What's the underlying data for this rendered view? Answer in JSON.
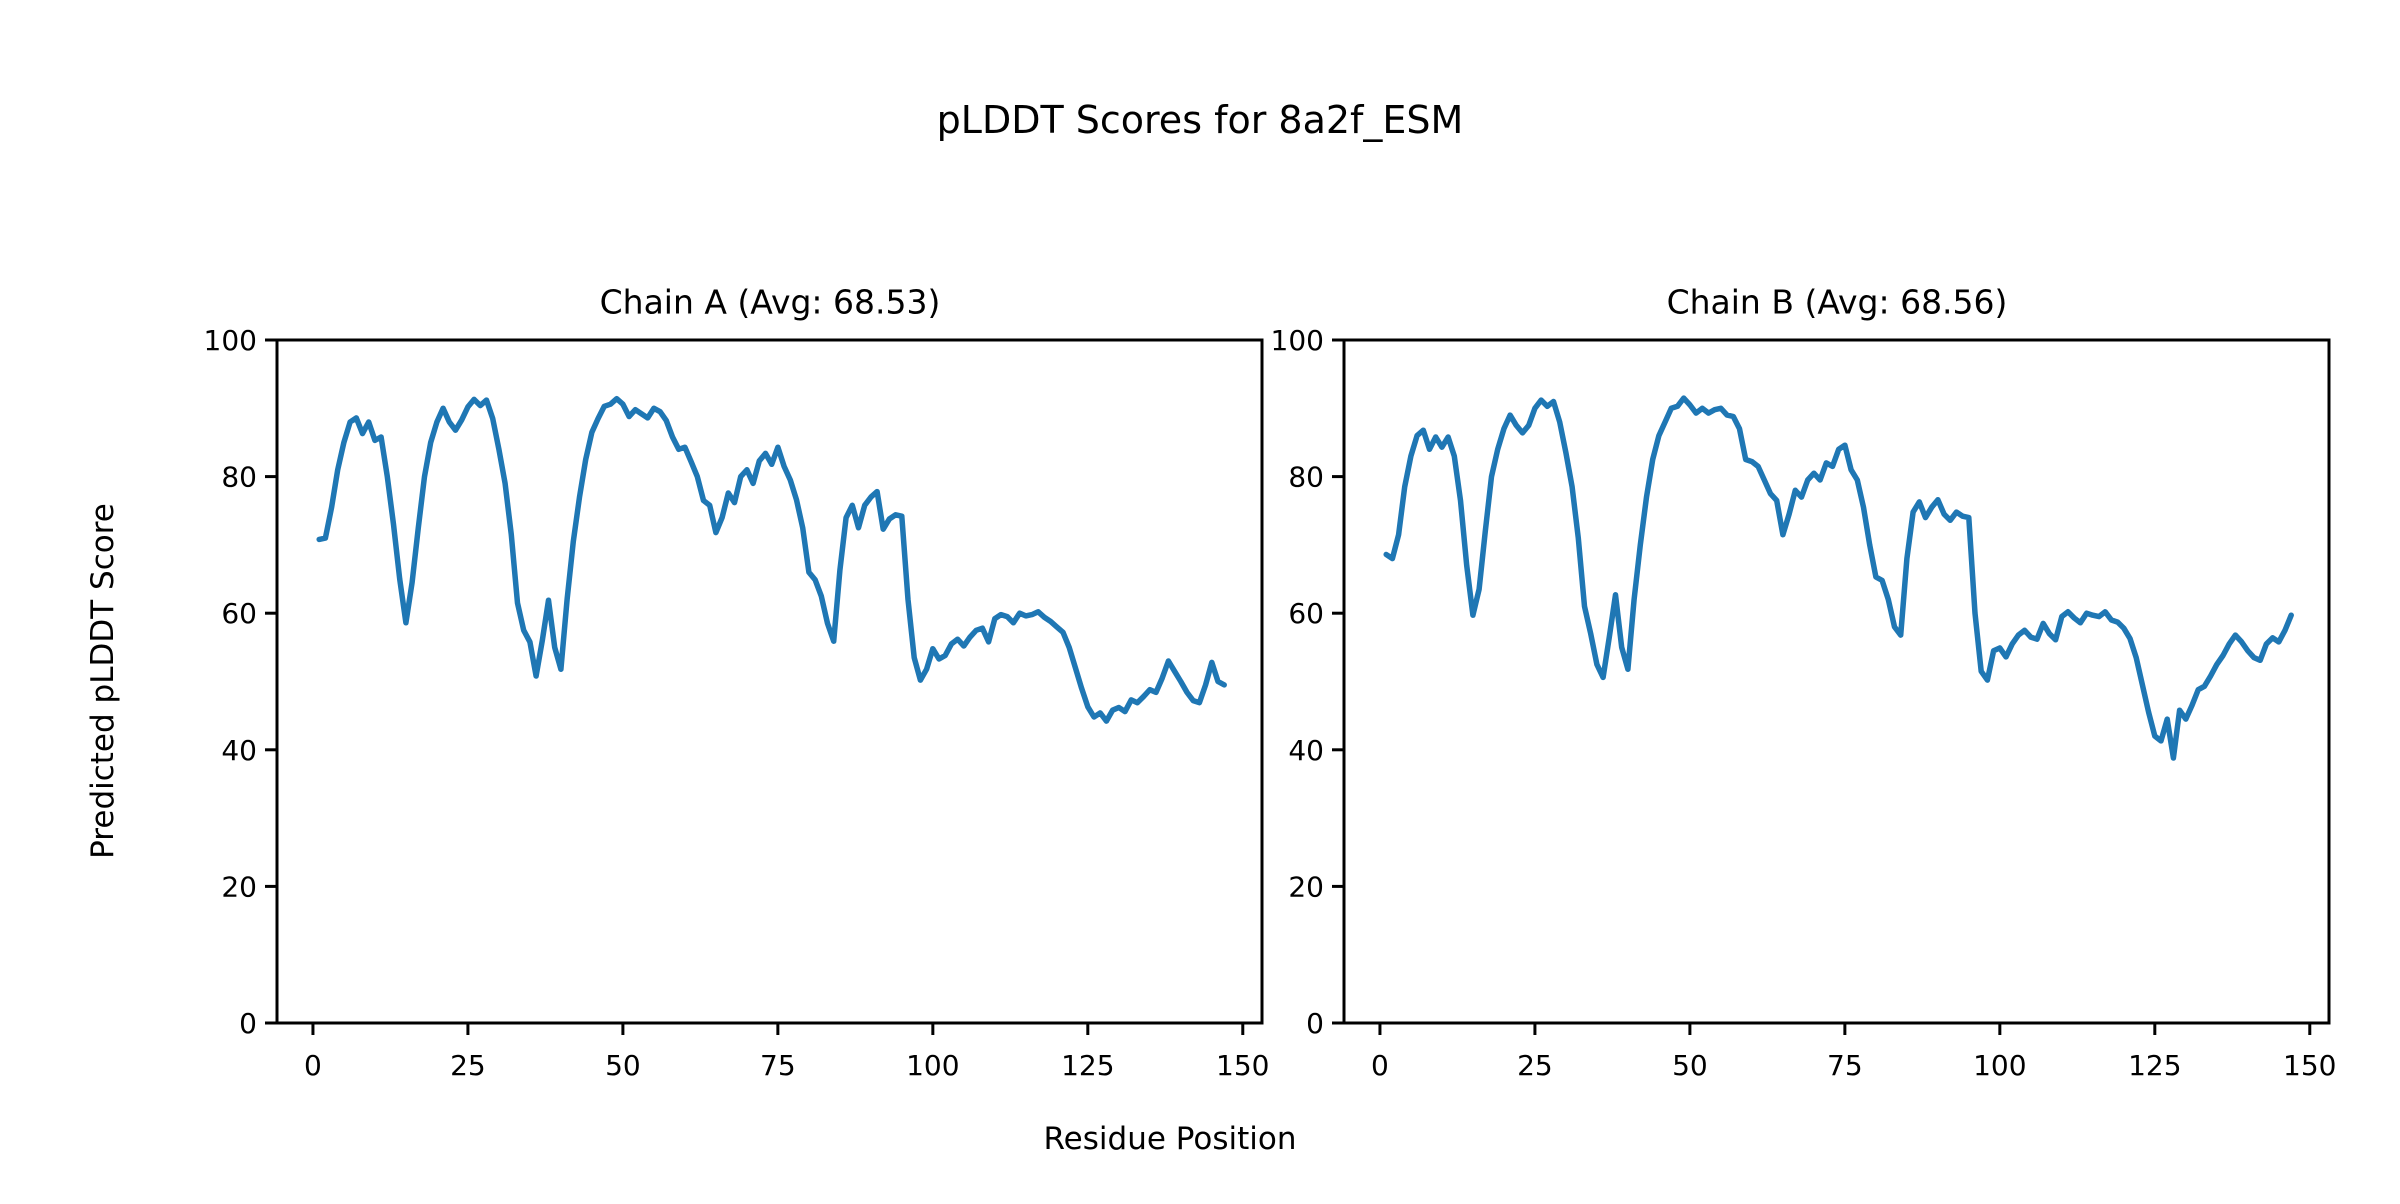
{
  "figure": {
    "title": "pLDDT Scores for 8a2f_ESM",
    "xlabel": "Residue Position",
    "ylabel": "Predicted pLDDT Score",
    "background_color": "#ffffff",
    "axis_color": "#000000",
    "line_color": "#1f77b4"
  },
  "chart_data": [
    {
      "type": "line",
      "id": "chain-a",
      "title": "Chain A (Avg: 68.53)",
      "average": 68.53,
      "xlabel": "Residue Position",
      "ylabel": "Predicted pLDDT Score",
      "xlim": [
        -5.8,
        153.1
      ],
      "ylim": [
        0,
        100
      ],
      "xticks": [
        0,
        25,
        50,
        75,
        100,
        125,
        150
      ],
      "yticks": [
        0,
        20,
        40,
        60,
        80,
        100
      ],
      "grid": false,
      "legend": "none",
      "series": [
        {
          "name": "pLDDT",
          "color": "#1f77b4",
          "x_start": 1,
          "x_step": 1,
          "values": [
            70.8,
            71.0,
            75.5,
            81.0,
            85.0,
            88.0,
            88.6,
            86.3,
            88.0,
            85.3,
            85.8,
            80.0,
            73.0,
            65.0,
            58.6,
            64.5,
            72.5,
            80.0,
            85.0,
            88.0,
            90.0,
            88.0,
            86.8,
            88.3,
            90.2,
            91.3,
            90.4,
            91.2,
            88.5,
            84.0,
            79.0,
            71.5,
            61.5,
            57.5,
            55.8,
            50.8,
            56.0,
            61.9,
            55.0,
            51.8,
            62.0,
            70.5,
            77.0,
            82.5,
            86.5,
            88.5,
            90.3,
            90.6,
            91.4,
            90.6,
            88.8,
            89.8,
            89.2,
            88.6,
            90.0,
            89.5,
            88.2,
            85.8,
            84.0,
            84.3,
            82.2,
            80.0,
            76.5,
            75.8,
            71.8,
            74.0,
            77.6,
            76.2,
            80.0,
            81.0,
            79.0,
            82.3,
            83.4,
            81.8,
            84.3,
            81.5,
            79.5,
            76.6,
            72.5,
            66.0,
            64.9,
            62.5,
            58.5,
            55.9,
            66.3,
            74.0,
            75.8,
            72.5,
            75.8,
            77.0,
            77.8,
            72.3,
            73.8,
            74.4,
            74.2,
            62.0,
            53.5,
            50.2,
            51.8,
            54.8,
            53.3,
            53.8,
            55.5,
            56.2,
            55.2,
            56.5,
            57.5,
            57.8,
            55.8,
            59.2,
            59.8,
            59.5,
            58.6,
            60.0,
            59.6,
            59.8,
            60.2,
            59.4,
            58.8,
            58.0,
            57.2,
            55.0,
            52.0,
            49.0,
            46.3,
            44.8,
            45.4,
            44.2,
            45.8,
            46.2,
            45.6,
            47.3,
            46.9,
            47.8,
            48.8,
            48.4,
            50.5,
            53.0,
            51.5,
            50.0,
            48.4,
            47.2,
            46.9,
            49.5,
            52.8,
            50.0,
            49.5
          ]
        }
      ]
    },
    {
      "type": "line",
      "id": "chain-b",
      "title": "Chain B (Avg: 68.56)",
      "average": 68.56,
      "xlabel": "Residue Position",
      "ylabel": "Predicted pLDDT Score",
      "xlim": [
        -5.8,
        153.1
      ],
      "ylim": [
        0,
        100
      ],
      "xticks": [
        0,
        25,
        50,
        75,
        100,
        125,
        150
      ],
      "yticks": [
        0,
        20,
        40,
        60,
        80,
        100
      ],
      "grid": false,
      "legend": "none",
      "series": [
        {
          "name": "pLDDT",
          "color": "#1f77b4",
          "x_start": 1,
          "x_step": 1,
          "values": [
            68.6,
            68.0,
            71.5,
            78.5,
            83.0,
            86.0,
            86.8,
            84.0,
            85.8,
            84.3,
            85.8,
            83.0,
            76.5,
            67.0,
            59.7,
            63.5,
            72.0,
            80.0,
            84.0,
            87.0,
            89.0,
            87.5,
            86.4,
            87.5,
            90.0,
            91.2,
            90.3,
            91.0,
            88.0,
            83.5,
            78.5,
            71.0,
            61.0,
            57.0,
            52.5,
            50.6,
            56.5,
            62.7,
            55.0,
            51.8,
            62.0,
            70.0,
            77.0,
            82.5,
            86.0,
            88.0,
            90.0,
            90.3,
            91.5,
            90.5,
            89.3,
            90.0,
            89.3,
            89.8,
            90.0,
            89.0,
            88.8,
            87.0,
            82.5,
            82.2,
            81.5,
            79.5,
            77.5,
            76.5,
            71.5,
            74.5,
            78.0,
            77.0,
            79.5,
            80.5,
            79.5,
            82.0,
            81.5,
            84.0,
            84.6,
            81.0,
            79.5,
            75.5,
            70.0,
            65.3,
            64.8,
            62.0,
            58.0,
            56.8,
            68.0,
            74.8,
            76.3,
            74.0,
            75.5,
            76.6,
            74.5,
            73.6,
            74.8,
            74.2,
            74.0,
            60.0,
            51.5,
            50.2,
            54.5,
            54.9,
            53.6,
            55.5,
            56.8,
            57.5,
            56.5,
            56.2,
            58.5,
            57.0,
            56.1,
            59.5,
            60.2,
            59.3,
            58.6,
            60.0,
            59.7,
            59.5,
            60.2,
            59.0,
            58.7,
            57.8,
            56.3,
            53.5,
            49.5,
            45.5,
            42.0,
            41.3,
            44.5,
            38.8,
            45.8,
            44.5,
            46.5,
            48.8,
            49.3,
            50.8,
            52.5,
            53.8,
            55.5,
            56.8,
            55.8,
            54.5,
            53.5,
            53.1,
            55.5,
            56.4,
            55.8,
            57.5,
            59.7
          ]
        }
      ]
    }
  ]
}
